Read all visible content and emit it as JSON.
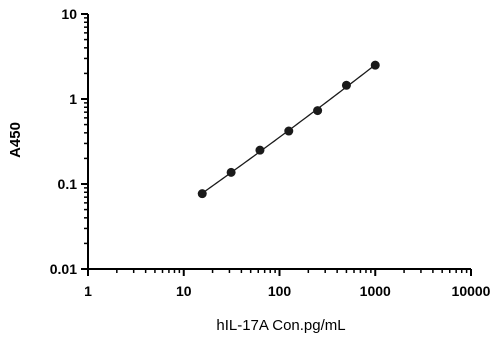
{
  "chart_data": {
    "type": "scatter",
    "title": "",
    "xlabel": "hIL-17A Con.pg/mL",
    "ylabel": "A450",
    "x_scale": "log",
    "y_scale": "log",
    "xlim": [
      1,
      10000
    ],
    "ylim": [
      0.01,
      10
    ],
    "x_ticks": [
      "1",
      "10",
      "100",
      "1000",
      "10000"
    ],
    "y_ticks": [
      "0.01",
      "0.1",
      "1",
      "10"
    ],
    "grid": false,
    "legend": "none",
    "series": [
      {
        "x": [
          15.6,
          31.25,
          62.5,
          125,
          250,
          500,
          1000
        ],
        "y": [
          0.077,
          0.137,
          0.25,
          0.42,
          0.73,
          1.45,
          2.5
        ],
        "marker": "circle",
        "fit_line": true
      }
    ],
    "colors": {
      "points": "#1a1a1a",
      "line": "#1a1a1a",
      "axis": "#000000"
    }
  }
}
